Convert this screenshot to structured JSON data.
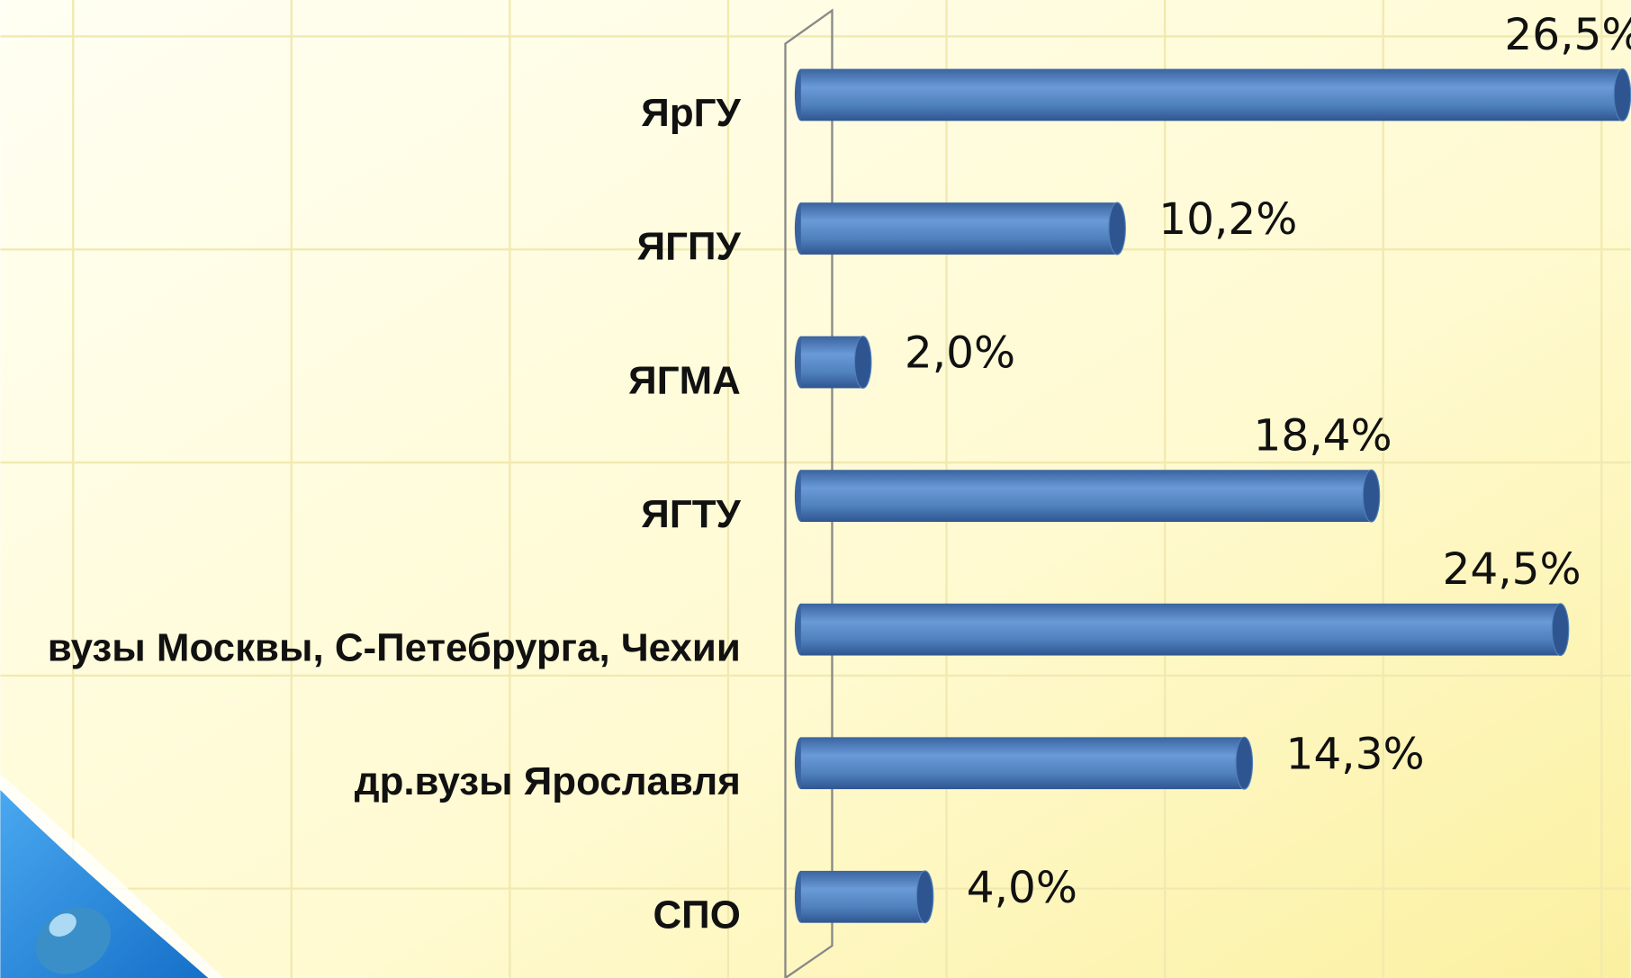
{
  "chart_data": {
    "type": "bar",
    "orientation": "horizontal",
    "categories": [
      "ЯрГУ",
      "ЯГПУ",
      "ЯГМА",
      "ЯГТУ",
      "вузы Москвы, С-Петебрурга, Чехии",
      "др.вузы Ярославля",
      "СПО"
    ],
    "values": [
      26.5,
      10.2,
      2.0,
      18.4,
      24.5,
      14.3,
      4.0
    ],
    "value_labels": [
      "26,5%",
      "10,2%",
      "2,0%",
      "18,4%",
      "24,5%",
      "14,3%",
      "4,0%"
    ],
    "color": "#4f81bd",
    "xlim": [
      0,
      26.5
    ]
  }
}
